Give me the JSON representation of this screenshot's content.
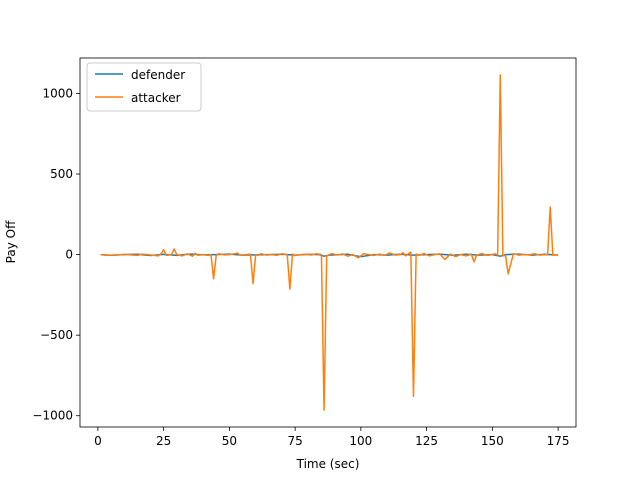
{
  "chart_data": {
    "type": "line",
    "title": "",
    "xlabel": "Time (sec)",
    "ylabel": "Pay Off",
    "xlim": [
      -6.8,
      181.8
    ],
    "ylim": [
      -1070,
      1220
    ],
    "xticks": [
      0,
      25,
      50,
      75,
      100,
      125,
      150,
      175
    ],
    "yticks": [
      -1000,
      -500,
      0,
      500,
      1000
    ],
    "xtick_labels": [
      "0",
      "25",
      "50",
      "75",
      "100",
      "125",
      "150",
      "175"
    ],
    "ytick_labels": [
      "−1000",
      "−500",
      "0",
      "500",
      "1000"
    ],
    "grid": false,
    "legend_position": "top-left",
    "series": [
      {
        "name": "defender",
        "color": "#1f77b4",
        "x": [
          1,
          5,
          10,
          15,
          20,
          25,
          30,
          35,
          40,
          45,
          50,
          55,
          60,
          65,
          70,
          75,
          80,
          84,
          86,
          88,
          95,
          100,
          105,
          110,
          115,
          120,
          125,
          130,
          135,
          140,
          145,
          150,
          153,
          155,
          160,
          165,
          170,
          172,
          175
        ],
        "y": [
          0,
          -4,
          0,
          2,
          -6,
          1,
          -5,
          3,
          -2,
          0,
          3,
          -3,
          -2,
          0,
          2,
          -3,
          1,
          0,
          -10,
          -3,
          2,
          -13,
          0,
          -3,
          2,
          -3,
          0,
          3,
          -4,
          2,
          -3,
          0,
          -10,
          0,
          3,
          -3,
          2,
          0,
          -3
        ]
      },
      {
        "name": "attacker",
        "color": "#ff7f0e",
        "x": [
          1,
          3,
          5,
          8,
          10,
          12,
          15,
          17,
          19,
          21,
          23,
          24,
          25,
          26,
          28,
          29,
          30,
          32,
          34,
          36,
          37,
          38,
          40,
          42,
          43,
          44,
          45,
          46,
          48,
          50,
          52,
          53,
          54,
          56,
          58,
          59,
          60,
          61,
          62,
          64,
          66,
          68,
          70,
          72,
          73,
          74,
          75,
          77,
          79,
          81,
          83,
          85,
          86,
          87,
          89,
          91,
          93,
          95,
          97,
          99,
          101,
          103,
          105,
          107,
          109,
          111,
          113,
          115,
          116,
          117,
          118,
          119,
          120,
          121,
          122,
          124,
          126,
          128,
          130,
          132,
          134,
          136,
          138,
          140,
          142,
          143,
          144,
          146,
          148,
          150,
          151,
          152,
          153,
          154,
          155,
          156,
          158,
          160,
          162,
          164,
          166,
          168,
          170,
          171,
          172,
          173,
          174,
          175
        ],
        "y": [
          0,
          -4,
          -3,
          -2,
          2,
          -1,
          -5,
          3,
          0,
          -4,
          -8,
          5,
          30,
          -5,
          0,
          35,
          0,
          -8,
          5,
          -10,
          8,
          -4,
          0,
          -5,
          0,
          -150,
          -5,
          5,
          -2,
          0,
          5,
          10,
          -3,
          0,
          2,
          -180,
          0,
          -5,
          5,
          -3,
          0,
          -4,
          5,
          0,
          -215,
          3,
          -6,
          0,
          2,
          -3,
          5,
          0,
          -965,
          -8,
          6,
          -3,
          4,
          -10,
          0,
          -20,
          5,
          0,
          -5,
          3,
          -5,
          10,
          -3,
          0,
          12,
          -8,
          5,
          15,
          -880,
          3,
          -5,
          6,
          -8,
          0,
          4,
          -30,
          3,
          -12,
          0,
          -8,
          3,
          -45,
          -4,
          6,
          -5,
          0,
          5,
          -3,
          1115,
          -8,
          -5,
          -120,
          5,
          -3,
          0,
          -2,
          5,
          -3,
          0,
          -2,
          295,
          -5,
          0,
          -3
        ]
      }
    ]
  }
}
